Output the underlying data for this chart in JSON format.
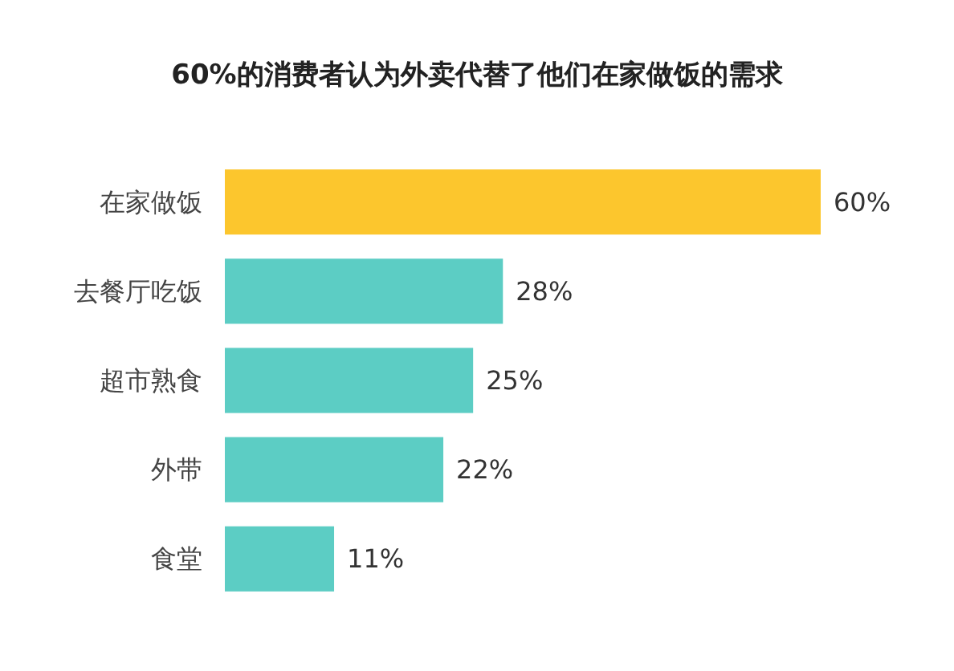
{
  "chart_data": {
    "type": "bar",
    "orientation": "horizontal",
    "title": "60%的消费者认为外卖代替了他们在家做饭的需求",
    "categories": [
      "在家做饭",
      "去餐厅吃饭",
      "超市熟食",
      "外带",
      "食堂"
    ],
    "values": [
      60,
      28,
      25,
      22,
      11
    ],
    "colors": [
      "#fcc62d",
      "#5ccdc4",
      "#5ccdc4",
      "#5ccdc4",
      "#5ccdc4"
    ],
    "value_labels": [
      "60%",
      "28%",
      "25%",
      "22%",
      "11%"
    ]
  }
}
